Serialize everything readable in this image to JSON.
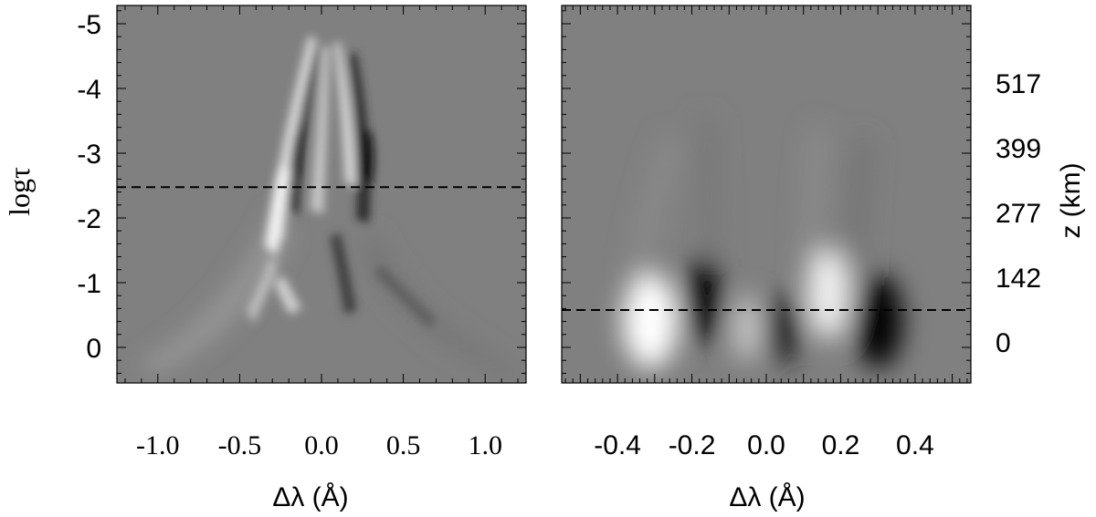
{
  "chart_data": [
    {
      "type": "heatmap",
      "panel": "left",
      "xlabel": "Δλ (Å)",
      "ylabel": "logτ",
      "xlim": [
        -1.25,
        1.25
      ],
      "ylim": [
        0.6,
        -5.2
      ],
      "x_ticks": [
        -1.0,
        -0.5,
        0.0,
        0.5,
        1.0
      ],
      "x_tick_labels": [
        "-1.0",
        "-0.5",
        "0.0",
        "0.5",
        "1.0"
      ],
      "y_ticks": [
        0,
        -1,
        -2,
        -3,
        -4,
        -5
      ],
      "y_tick_labels": [
        "0",
        "-1",
        "-2",
        "-3",
        "-4",
        "-5"
      ],
      "dashed_line_y": -2.7,
      "colormap": "gray",
      "background_color": "#808080"
    },
    {
      "type": "heatmap",
      "panel": "right",
      "xlabel": "Δλ (Å)",
      "ylabel": "z (km)",
      "xlim": [
        -0.55,
        0.55
      ],
      "x_ticks": [
        -0.4,
        -0.2,
        0.0,
        0.2,
        0.4
      ],
      "x_tick_labels": [
        "-0.4",
        "-0.2",
        "0.0",
        "0.2",
        "0.4"
      ],
      "y_ticks": [
        0,
        142,
        277,
        399,
        517
      ],
      "y_tick_labels": [
        "0",
        "142",
        "277",
        "399",
        "517"
      ],
      "dashed_line_y": 55,
      "colormap": "gray",
      "background_color": "#808080"
    }
  ]
}
